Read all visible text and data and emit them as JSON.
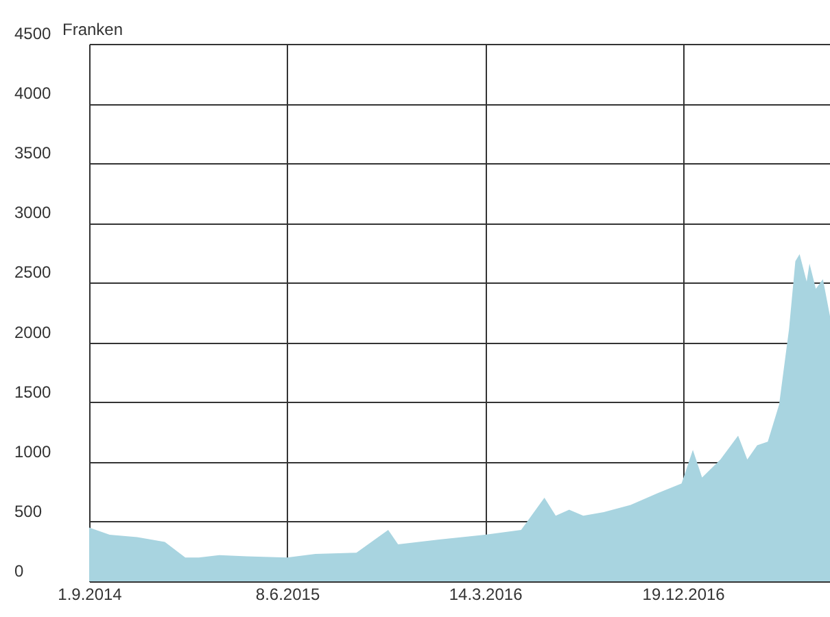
{
  "chart_data": {
    "type": "area",
    "ylabel": "Franken",
    "x": [
      "2014-09-01",
      "2014-09-30",
      "2014-11-08",
      "2014-12-17",
      "2015-01-15",
      "2015-02-03",
      "2015-03-04",
      "2015-04-12",
      "2015-06-08",
      "2015-07-18",
      "2015-09-14",
      "2015-10-29",
      "2015-11-12",
      "2016-01-09",
      "2016-03-14",
      "2016-05-04",
      "2016-06-06",
      "2016-06-22",
      "2016-07-11",
      "2016-07-31",
      "2016-08-29",
      "2016-10-06",
      "2016-11-14",
      "2016-12-17",
      "2017-01-02",
      "2017-01-15",
      "2017-02-10",
      "2017-03-07",
      "2017-03-20",
      "2017-04-03",
      "2017-04-18",
      "2017-05-04",
      "2017-05-18",
      "2017-05-27",
      "2017-06-02",
      "2017-06-12",
      "2017-06-16",
      "2017-06-25",
      "2017-07-05",
      "2017-07-15"
    ],
    "series": [
      {
        "color": "#a8d4e0",
        "values": [
          450,
          390,
          370,
          330,
          200,
          200,
          220,
          210,
          200,
          230,
          240,
          430,
          310,
          350,
          390,
          430,
          700,
          550,
          600,
          550,
          580,
          640,
          740,
          820,
          1100,
          870,
          1020,
          1220,
          1020,
          1140,
          1170,
          1480,
          2110,
          2680,
          2740,
          2510,
          2660,
          2450,
          2530,
          2220
        ]
      }
    ],
    "xlim": [
      "2014-09-01",
      "2017-07-15"
    ],
    "xticks": [
      {
        "value": "2014-09-01",
        "label": "1.9.2014"
      },
      {
        "value": "2015-06-08",
        "label": "8.6.2015"
      },
      {
        "value": "2016-03-14",
        "label": "14.3.2016"
      },
      {
        "value": "2016-12-19",
        "label": "19.12.2016"
      }
    ],
    "ylim": [
      0,
      4500
    ],
    "yticks": [
      0,
      500,
      1000,
      1500,
      2000,
      2500,
      3000,
      3500,
      4000,
      4500
    ],
    "grid": true
  }
}
